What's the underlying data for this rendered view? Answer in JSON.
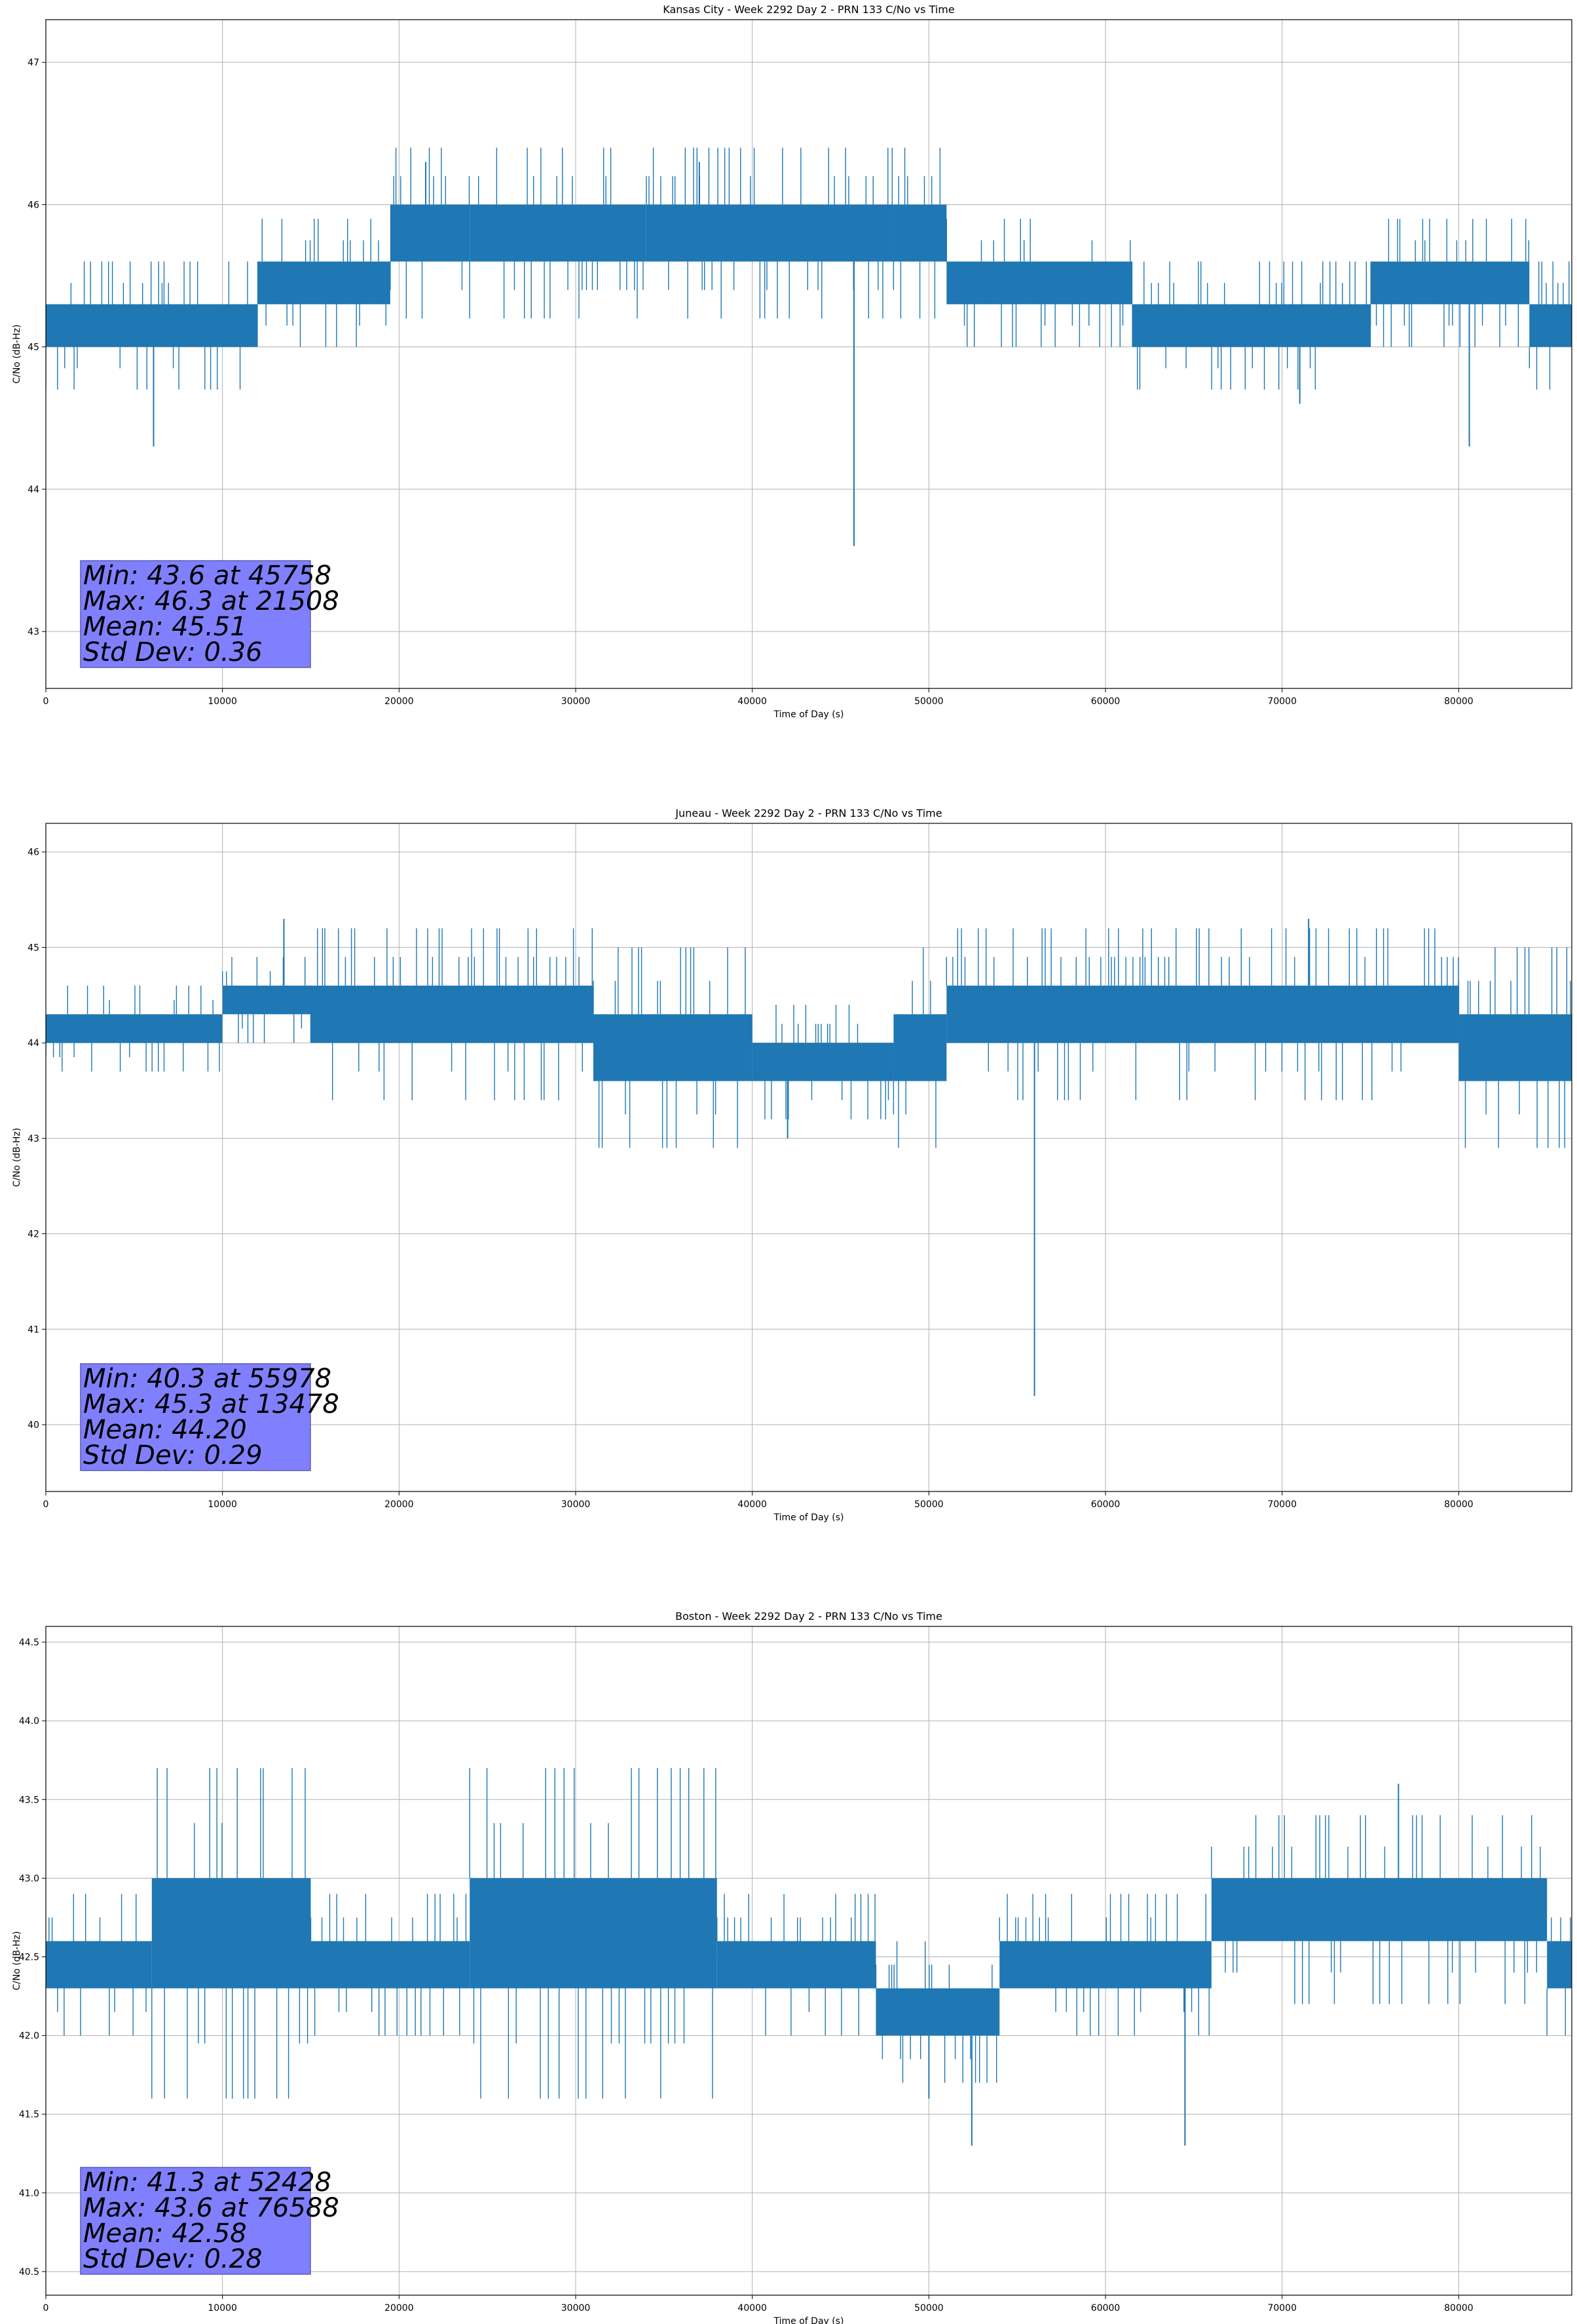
{
  "figure": {
    "series_color": "#1f77b4",
    "stats_box_color": "#8080ff",
    "stats_box_edge": "#5a5ab0"
  },
  "chart_data": [
    {
      "type": "line",
      "title": "Kansas City - Week 2292 Day 2 - PRN 133 C/No vs Time",
      "xlabel": "Time of Day (s)",
      "ylabel": "C/No (dB-Hz)",
      "xlim": [
        0,
        86400
      ],
      "ylim": [
        42.6,
        47.3
      ],
      "xticks": [
        "0",
        "10000",
        "20000",
        "30000",
        "40000",
        "50000",
        "60000",
        "70000",
        "80000"
      ],
      "yticks": [
        "43",
        "44",
        "45",
        "46",
        "47"
      ],
      "grid": true,
      "segments": [
        {
          "x": [
            0,
            12000
          ],
          "lo": 45.0,
          "hi": 45.3
        },
        {
          "x": [
            12000,
            19500
          ],
          "lo": 45.3,
          "hi": 45.6
        },
        {
          "x": [
            19500,
            24000
          ],
          "lo": 45.6,
          "hi": 46.0
        },
        {
          "x": [
            24000,
            34000
          ],
          "lo": 45.6,
          "hi": 46.0
        },
        {
          "x": [
            34000,
            48000
          ],
          "lo": 45.6,
          "hi": 46.0
        },
        {
          "x": [
            48000,
            51000
          ],
          "lo": 45.6,
          "hi": 46.0
        },
        {
          "x": [
            51000,
            61500
          ],
          "lo": 45.3,
          "hi": 45.6
        },
        {
          "x": [
            61500,
            75000
          ],
          "lo": 45.0,
          "hi": 45.3
        },
        {
          "x": [
            75000,
            84000
          ],
          "lo": 45.3,
          "hi": 45.6
        },
        {
          "x": [
            84000,
            86400
          ],
          "lo": 45.0,
          "hi": 45.3
        }
      ],
      "spikes": [
        {
          "x": 6100,
          "y": 44.3
        },
        {
          "x": 45758,
          "y": 43.6
        },
        {
          "x": 71000,
          "y": 44.6
        },
        {
          "x": 80600,
          "y": 44.3
        },
        {
          "x": 21508,
          "y": 46.3
        },
        {
          "x": 37000,
          "y": 46.3
        }
      ],
      "stats": {
        "min": "Min: 43.6 at 45758",
        "max": "Max: 46.3 at 21508",
        "mean": "Mean: 45.51",
        "std": "Std Dev: 0.36"
      }
    },
    {
      "type": "line",
      "title": "Juneau - Week 2292 Day 2 - PRN 133 C/No vs Time",
      "xlabel": "Time of Day (s)",
      "ylabel": "C/No (dB-Hz)",
      "xlim": [
        0,
        86400
      ],
      "ylim": [
        39.3,
        46.3
      ],
      "xticks": [
        "0",
        "10000",
        "20000",
        "30000",
        "40000",
        "50000",
        "60000",
        "70000",
        "80000"
      ],
      "yticks": [
        "40",
        "41",
        "42",
        "43",
        "44",
        "45",
        "46"
      ],
      "grid": true,
      "segments": [
        {
          "x": [
            0,
            10000
          ],
          "lo": 44.0,
          "hi": 44.3
        },
        {
          "x": [
            10000,
            15000
          ],
          "lo": 44.3,
          "hi": 44.6
        },
        {
          "x": [
            15000,
            31000
          ],
          "lo": 44.0,
          "hi": 44.6
        },
        {
          "x": [
            31000,
            40000
          ],
          "lo": 43.6,
          "hi": 44.3
        },
        {
          "x": [
            40000,
            48000
          ],
          "lo": 43.6,
          "hi": 44.0
        },
        {
          "x": [
            48000,
            51000
          ],
          "lo": 43.6,
          "hi": 44.3
        },
        {
          "x": [
            51000,
            80000
          ],
          "lo": 44.0,
          "hi": 44.6
        },
        {
          "x": [
            80000,
            86400
          ],
          "lo": 43.6,
          "hi": 44.3
        }
      ],
      "spikes": [
        {
          "x": 55978,
          "y": 40.3
        },
        {
          "x": 42000,
          "y": 43.0
        },
        {
          "x": 13478,
          "y": 45.3
        },
        {
          "x": 71500,
          "y": 45.3
        }
      ],
      "stats": {
        "min": "Min: 40.3 at 55978",
        "max": "Max: 45.3 at 13478",
        "mean": "Mean: 44.20",
        "std": "Std Dev: 0.29"
      }
    },
    {
      "type": "line",
      "title": "Boston - Week 2292 Day 2 - PRN 133 C/No vs Time",
      "xlabel": "Time of Day (s)",
      "ylabel": "C/No (dB-Hz)",
      "xlim": [
        0,
        86400
      ],
      "ylim": [
        40.35,
        44.6
      ],
      "xticks": [
        "0",
        "10000",
        "20000",
        "30000",
        "40000",
        "50000",
        "60000",
        "70000",
        "80000"
      ],
      "yticks": [
        "40.5",
        "41.0",
        "41.5",
        "42.0",
        "42.5",
        "43.0",
        "43.5",
        "44.0",
        "44.5"
      ],
      "grid": true,
      "segments": [
        {
          "x": [
            0,
            6000
          ],
          "lo": 42.3,
          "hi": 42.6
        },
        {
          "x": [
            6000,
            15000
          ],
          "lo": 42.3,
          "hi": 43.0
        },
        {
          "x": [
            15000,
            24000
          ],
          "lo": 42.3,
          "hi": 42.6
        },
        {
          "x": [
            24000,
            38000
          ],
          "lo": 42.3,
          "hi": 43.0
        },
        {
          "x": [
            38000,
            47000
          ],
          "lo": 42.3,
          "hi": 42.6
        },
        {
          "x": [
            47000,
            54000
          ],
          "lo": 42.0,
          "hi": 42.3
        },
        {
          "x": [
            54000,
            66000
          ],
          "lo": 42.3,
          "hi": 42.6
        },
        {
          "x": [
            66000,
            85000
          ],
          "lo": 42.6,
          "hi": 43.0
        },
        {
          "x": [
            85000,
            86400
          ],
          "lo": 42.3,
          "hi": 42.6
        }
      ],
      "spikes": [
        {
          "x": 52428,
          "y": 41.3
        },
        {
          "x": 64500,
          "y": 41.3
        },
        {
          "x": 76588,
          "y": 43.6
        },
        {
          "x": 50000,
          "y": 41.6
        }
      ],
      "stats": {
        "min": "Min: 41.3 at 52428",
        "max": "Max: 43.6 at 76588",
        "mean": "Mean: 42.58",
        "std": "Std Dev: 0.28"
      }
    }
  ]
}
